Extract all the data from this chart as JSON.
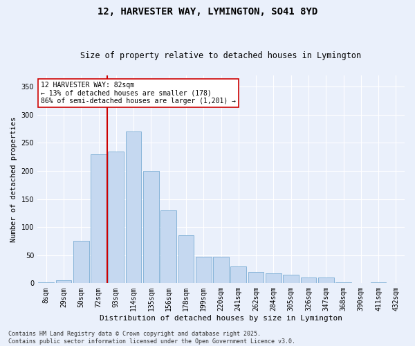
{
  "title": "12, HARVESTER WAY, LYMINGTON, SO41 8YD",
  "subtitle": "Size of property relative to detached houses in Lymington",
  "xlabel": "Distribution of detached houses by size in Lymington",
  "ylabel": "Number of detached properties",
  "categories": [
    "8sqm",
    "29sqm",
    "50sqm",
    "72sqm",
    "93sqm",
    "114sqm",
    "135sqm",
    "156sqm",
    "178sqm",
    "199sqm",
    "220sqm",
    "241sqm",
    "262sqm",
    "284sqm",
    "305sqm",
    "326sqm",
    "347sqm",
    "368sqm",
    "390sqm",
    "411sqm",
    "432sqm"
  ],
  "values": [
    2,
    5,
    75,
    230,
    235,
    270,
    200,
    130,
    85,
    47,
    47,
    30,
    20,
    18,
    15,
    10,
    10,
    2,
    0,
    2,
    0
  ],
  "bar_color": "#c5d8f0",
  "bar_edge_color": "#7aadd4",
  "vline_x": 3.5,
  "vline_color": "#cc0000",
  "annotation_text": "12 HARVESTER WAY: 82sqm\n← 13% of detached houses are smaller (178)\n86% of semi-detached houses are larger (1,201) →",
  "annotation_box_color": "#ffffff",
  "annotation_box_edge": "#cc0000",
  "ylim": [
    0,
    370
  ],
  "yticks": [
    0,
    50,
    100,
    150,
    200,
    250,
    300,
    350
  ],
  "footer": "Contains HM Land Registry data © Crown copyright and database right 2025.\nContains public sector information licensed under the Open Government Licence v3.0.",
  "background_color": "#eaf0fb",
  "grid_color": "#ffffff",
  "fig_width": 6.0,
  "fig_height": 5.0,
  "title_fontsize": 10,
  "subtitle_fontsize": 8.5,
  "xlabel_fontsize": 8,
  "ylabel_fontsize": 7.5,
  "tick_fontsize": 7,
  "annotation_fontsize": 7,
  "footer_fontsize": 6
}
